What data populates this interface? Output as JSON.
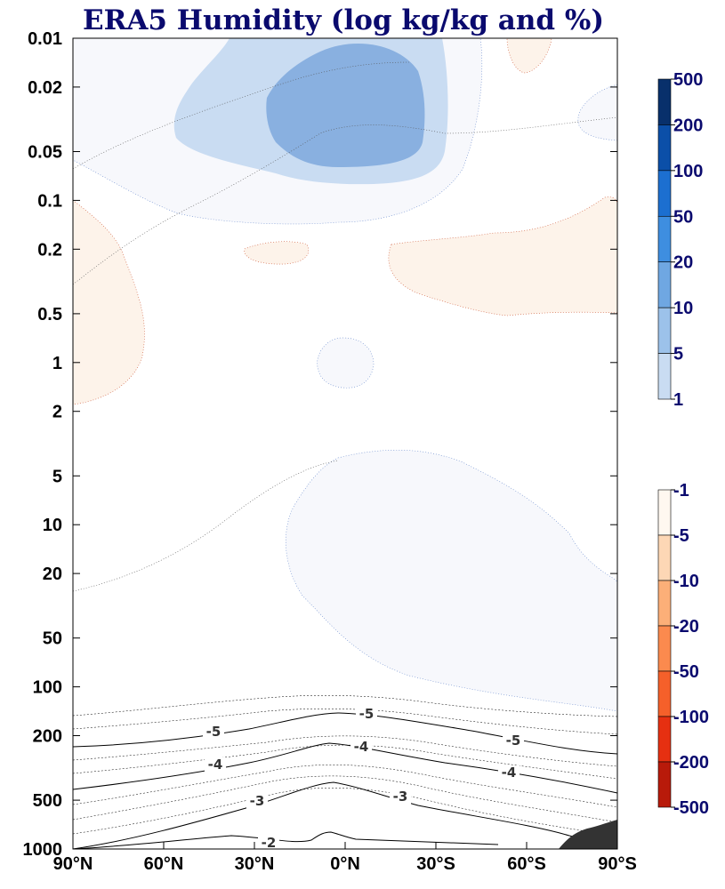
{
  "chart_data": {
    "type": "heatmap",
    "title": "ERA5 Humidity (log kg/kg and %)",
    "x_ticks": [
      "90°N",
      "60°N",
      "30°N",
      "0°N",
      "30°S",
      "60°S",
      "90°S"
    ],
    "y_ticks": [
      "0.01",
      "0.02",
      "0.05",
      "0.1",
      "0.2",
      "0.5",
      "1",
      "2",
      "5",
      "10",
      "20",
      "50",
      "100",
      "200",
      "500",
      "1000"
    ],
    "y_scale": "log",
    "y_inverted": true,
    "xlim": [
      "90°N",
      "90°S"
    ],
    "ylim": [
      1000,
      0.01
    ],
    "positive_colorbar": {
      "ticks": [
        "500",
        "200",
        "100",
        "50",
        "20",
        "10",
        "5",
        "1"
      ],
      "colors": [
        "#08306b",
        "#0b4fa8",
        "#1c6fd0",
        "#3e8ee0",
        "#6fa7e2",
        "#9cc2ea",
        "#c9dcf2",
        "#f8f8fc"
      ]
    },
    "negative_colorbar": {
      "ticks": [
        "-1",
        "-5",
        "-10",
        "-20",
        "-50",
        "-100",
        "-200",
        "-500"
      ],
      "colors": [
        "#fff8f0",
        "#fdd7b5",
        "#fcaf78",
        "#fb8a4e",
        "#f5602a",
        "#e63011",
        "#b81a0a",
        "#7a0606"
      ]
    },
    "contour_labels": [
      "-5",
      "-5",
      "-5",
      "-4",
      "-4",
      "-4",
      "-3",
      "-3",
      "-2"
    ],
    "regions": [
      {
        "name": "upper positive region 5-10",
        "level": "5-10"
      },
      {
        "name": "upper positive core 10-20",
        "level": "10-20"
      },
      {
        "name": "tropical stratosphere 1-5",
        "level": "1-5"
      },
      {
        "name": "polar north negative",
        "level": "-1 to -5"
      },
      {
        "name": "southern mid-latitude negative",
        "level": "-1 to -5"
      },
      {
        "name": "topography south pole",
        "level": "none"
      }
    ]
  }
}
